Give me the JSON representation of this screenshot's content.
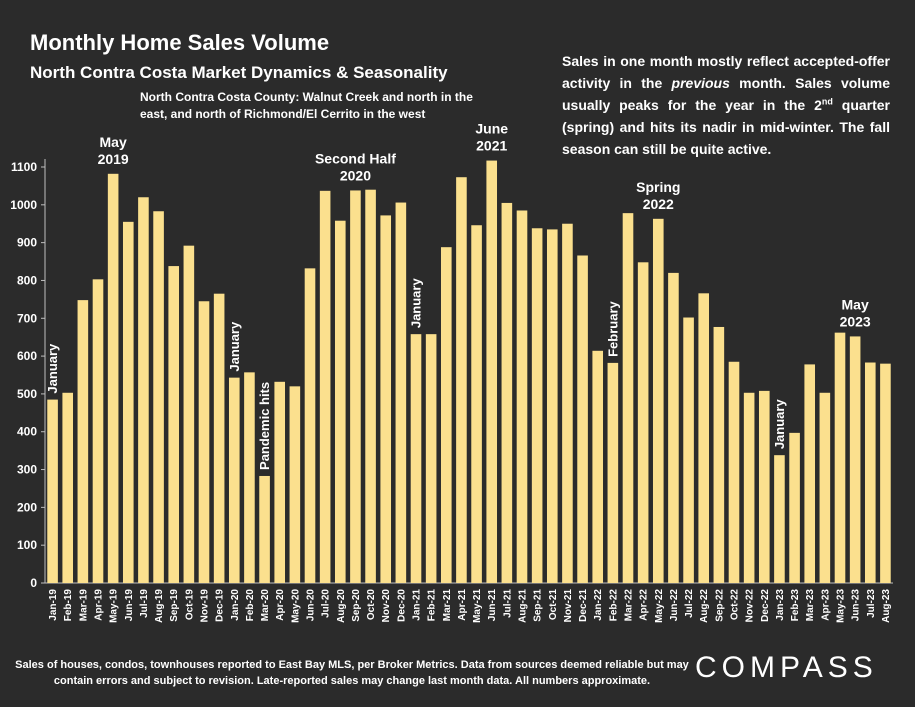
{
  "title": "Monthly Home Sales Volume",
  "subtitle": "North Contra Costa Market Dynamics & Seasonality",
  "region_note": "North Contra Costa County: Walnut Creek and north in the east, and north of Richmond/El Cerrito in the west",
  "seasonal_note": {
    "part1": "Sales in one month mostly reflect accepted-offer activity in the ",
    "italic": "previous",
    "part2": " month. Sales volume usually peaks for the year in the 2",
    "sup": "nd",
    "part3": " quarter (spring) and hits its nadir in mid-winter. The fall season can still be quite active."
  },
  "footnote": "Sales of houses, condos, townhouses reported to East Bay MLS, per Broker Metrics. Data from sources deemed reliable but may contain errors and subject to revision. Late-reported sales may change last month data. All numbers approximate.",
  "brand": "COMPASS",
  "colors": {
    "bar": "#fbe08e",
    "background": "#2b2b2b",
    "text": "#ffffff"
  },
  "chart_data": {
    "type": "bar",
    "ylim": [
      0,
      1100
    ],
    "yticks": [
      0,
      100,
      200,
      300,
      400,
      500,
      600,
      700,
      800,
      900,
      1000,
      1100
    ],
    "grid": false,
    "categories": [
      "Jan-19",
      "Feb-19",
      "Mar-19",
      "Apr-19",
      "May-19",
      "Jun-19",
      "Jul-19",
      "Aug-19",
      "Sep-19",
      "Oct-19",
      "Nov-19",
      "Dec-19",
      "Jan-20",
      "Feb-20",
      "Mar-20",
      "Apr-20",
      "May-20",
      "Jun-20",
      "Jul-20",
      "Aug-20",
      "Sep-20",
      "Oct-20",
      "Nov-20",
      "Dec-20",
      "Jan-21",
      "Feb-21",
      "Mar-21",
      "Apr-21",
      "May-21",
      "Jun-21",
      "Jul-21",
      "Aug-21",
      "Sep-21",
      "Oct-21",
      "Nov-21",
      "Dec-21",
      "Jan-22",
      "Feb-22",
      "Mar-22",
      "Apr-22",
      "May-22",
      "Jun-22",
      "Jul-22",
      "Aug-22",
      "Sep-22",
      "Oct-22",
      "Nov-22",
      "Dec-22",
      "Jan-23",
      "Feb-23",
      "Mar-23",
      "Apr-23",
      "May-23",
      "Jun-23",
      "Jul-23",
      "Aug-23"
    ],
    "values": [
      485,
      503,
      748,
      803,
      1082,
      955,
      1020,
      983,
      838,
      892,
      745,
      765,
      543,
      557,
      283,
      532,
      520,
      832,
      1037,
      958,
      1038,
      1040,
      972,
      1006,
      658,
      658,
      888,
      1073,
      946,
      1117,
      1005,
      985,
      938,
      935,
      950,
      866,
      614,
      582,
      978,
      848,
      963,
      820,
      702,
      766,
      677,
      585,
      503,
      508,
      338,
      397,
      578,
      503,
      662,
      652,
      583,
      580
    ],
    "annotations": [
      {
        "index": 0,
        "text": "January",
        "rotated": true
      },
      {
        "index": 4,
        "lines": [
          "May",
          "2019"
        ]
      },
      {
        "index": 12,
        "text": "January",
        "rotated": true
      },
      {
        "index": 14,
        "text": "Pandemic hits",
        "rotated": true
      },
      {
        "index": 20,
        "lines": [
          "Second Half",
          "2020"
        ]
      },
      {
        "index": 24,
        "text": "January",
        "rotated": true
      },
      {
        "index": 29,
        "lines": [
          "June",
          "2021"
        ]
      },
      {
        "index": 37,
        "text": "February",
        "rotated": true
      },
      {
        "index": 40,
        "lines": [
          "Spring",
          "2022"
        ]
      },
      {
        "index": 48,
        "text": "January",
        "rotated": true
      },
      {
        "index": 53,
        "lines": [
          "May",
          "2023"
        ]
      }
    ]
  }
}
